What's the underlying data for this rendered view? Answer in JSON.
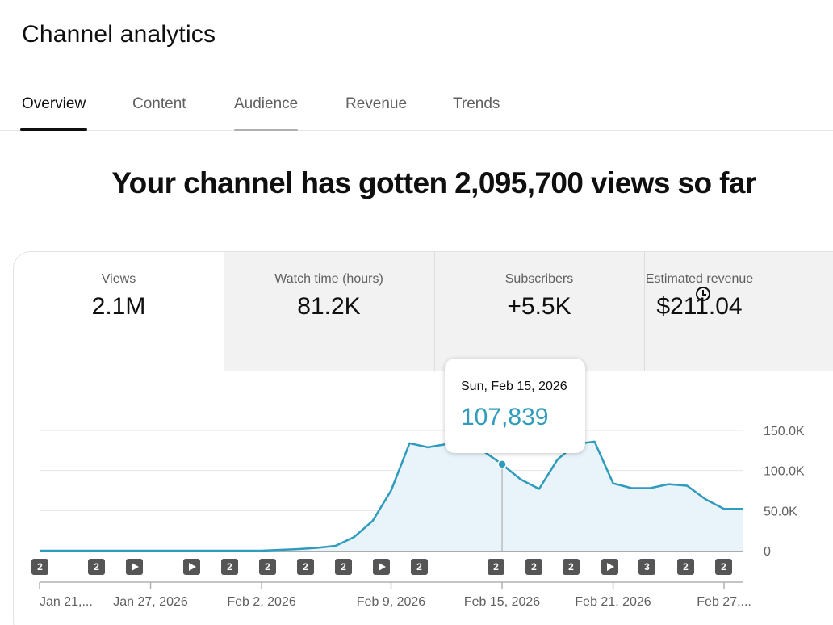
{
  "app": {
    "title": "Channel analytics"
  },
  "tabs": [
    "Overview",
    "Content",
    "Audience",
    "Revenue",
    "Trends"
  ],
  "headline": "Your channel has gotten 2,095,700 views so far",
  "metrics": [
    {
      "label": "Views",
      "value": "2.1M"
    },
    {
      "label": "Watch time (hours)",
      "value": "81.2K"
    },
    {
      "label": "Subscribers",
      "value": "+5.5K"
    },
    {
      "label": "Estimated revenue",
      "value": "$211.04"
    }
  ],
  "colors": {
    "accent": "#2f9bbd",
    "fill": "#e8f4fa"
  },
  "tooltip": {
    "date": "Sun, Feb 15, 2026",
    "value": "107,839"
  },
  "markers": [
    "2",
    "2",
    "play",
    "play",
    "2",
    "2",
    "2",
    "2",
    "play",
    "2",
    "2",
    "2",
    "2",
    "play",
    "3",
    "2",
    "2"
  ],
  "chart_data": {
    "type": "area",
    "y_ticks": [
      "150.0K",
      "100.0K",
      "50.0K",
      "0"
    ],
    "x_ticks": [
      "Jan 21,...",
      "Jan 27, 2026",
      "Feb 2, 2026",
      "Feb 9, 2026",
      "Feb 15, 2026",
      "Feb 21, 2026",
      "Feb 27,..."
    ],
    "ylim": [
      0,
      150000
    ],
    "grid": true,
    "x": [
      "Jan 21",
      "Jan 22",
      "Jan 23",
      "Jan 24",
      "Jan 25",
      "Jan 26",
      "Jan 27",
      "Jan 28",
      "Jan 29",
      "Jan 30",
      "Jan 31",
      "Feb 1",
      "Feb 2",
      "Feb 3",
      "Feb 4",
      "Feb 5",
      "Feb 6",
      "Feb 7",
      "Feb 8",
      "Feb 9",
      "Feb 10",
      "Feb 11",
      "Feb 12",
      "Feb 13",
      "Feb 14",
      "Feb 15",
      "Feb 16",
      "Feb 17",
      "Feb 18",
      "Feb 19",
      "Feb 20",
      "Feb 21",
      "Feb 22",
      "Feb 23",
      "Feb 24",
      "Feb 25",
      "Feb 26",
      "Feb 27",
      "Feb 28"
    ],
    "values": [
      0,
      0,
      0,
      0,
      0,
      0,
      0,
      0,
      0,
      0,
      0,
      0,
      0,
      1000,
      2000,
      3500,
      6000,
      17000,
      37000,
      75000,
      134000,
      129000,
      133000,
      136000,
      124000,
      107839,
      89000,
      77000,
      114000,
      133000,
      136000,
      84000,
      78000,
      78000,
      83000,
      81000,
      64000,
      52000,
      52000
    ]
  }
}
